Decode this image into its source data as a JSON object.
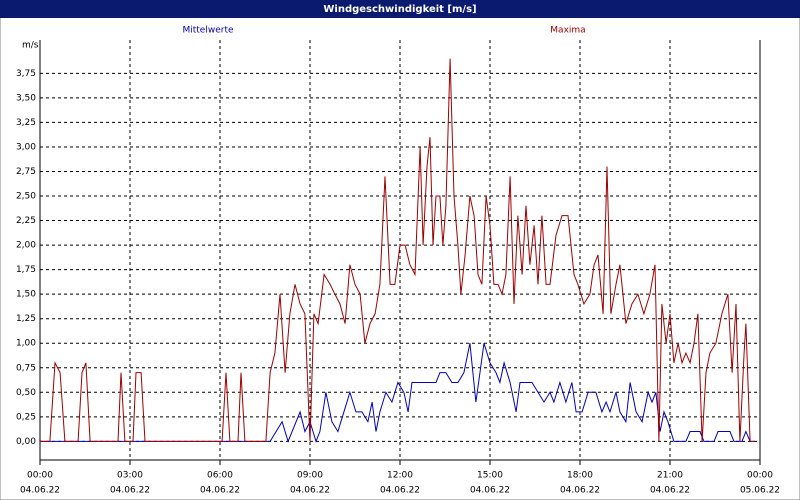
{
  "chart_data": {
    "type": "line",
    "title": "Windgeschwindigkeit [m/s]",
    "y_label": "m/s",
    "xlim": [
      0,
      24
    ],
    "ylim": [
      -0.19,
      4.09
    ],
    "grid": true,
    "xticks": [
      {
        "value": 0,
        "label": "00:00",
        "date": "04.06.22"
      },
      {
        "value": 3,
        "label": "03:00",
        "date": "04.06.22"
      },
      {
        "value": 6,
        "label": "06:00",
        "date": "04.06.22"
      },
      {
        "value": 9,
        "label": "09:00",
        "date": "04.06.22"
      },
      {
        "value": 12,
        "label": "12:00",
        "date": "04.06.22"
      },
      {
        "value": 15,
        "label": "15:00",
        "date": "04.06.22"
      },
      {
        "value": 18,
        "label": "18:00",
        "date": "04.06.22"
      },
      {
        "value": 21,
        "label": "21:00",
        "date": "04.06.22"
      },
      {
        "value": 24,
        "label": "00:00",
        "date": "05.06.22"
      }
    ],
    "yticks": [
      {
        "value": 0,
        "label": "0,00"
      },
      {
        "value": 0.25,
        "label": "0,25"
      },
      {
        "value": 0.5,
        "label": "0,50"
      },
      {
        "value": 0.75,
        "label": "0,75"
      },
      {
        "value": 1,
        "label": "1,00"
      },
      {
        "value": 1.25,
        "label": "1,25"
      },
      {
        "value": 1.5,
        "label": "1,50"
      },
      {
        "value": 1.75,
        "label": "1,75"
      },
      {
        "value": 2,
        "label": "2,00"
      },
      {
        "value": 2.25,
        "label": "2,25"
      },
      {
        "value": 2.5,
        "label": "2,50"
      },
      {
        "value": 2.75,
        "label": "2,75"
      },
      {
        "value": 3,
        "label": "3,00"
      },
      {
        "value": 3.25,
        "label": "3,25"
      },
      {
        "value": 3.5,
        "label": "3,50"
      },
      {
        "value": 3.75,
        "label": "3,75"
      }
    ],
    "series": [
      {
        "name": "Mittelwerte",
        "color": "#0000c0",
        "x": [
          0,
          7.67,
          8.07,
          8.27,
          8.67,
          8.83,
          9.0,
          9.2,
          9.33,
          9.53,
          9.73,
          9.93,
          10.13,
          10.33,
          10.53,
          10.73,
          10.93,
          11.07,
          11.2,
          11.33,
          11.53,
          11.73,
          11.93,
          12.13,
          12.27,
          12.4,
          12.67,
          12.93,
          13.2,
          13.33,
          13.53,
          13.73,
          13.93,
          14.13,
          14.33,
          14.53,
          14.8,
          15.0,
          15.2,
          15.33,
          15.47,
          15.67,
          15.87,
          16.0,
          16.2,
          16.4,
          16.6,
          16.8,
          17.0,
          17.13,
          17.33,
          17.53,
          17.73,
          17.87,
          18.07,
          18.27,
          18.53,
          18.73,
          18.87,
          19.0,
          19.2,
          19.33,
          19.53,
          19.67,
          19.87,
          20.07,
          20.27,
          20.4,
          20.53,
          20.67,
          20.8,
          20.93,
          21.13,
          21.53,
          21.67,
          22.0,
          22.13,
          22.47,
          22.6,
          23.0,
          23.13,
          23.4,
          23.53,
          23.67,
          23.83
        ],
        "values": [
          0,
          0,
          0.2,
          0,
          0.3,
          0.1,
          0.2,
          0,
          0.1,
          0.5,
          0.2,
          0.1,
          0.3,
          0.5,
          0.3,
          0.3,
          0.2,
          0.4,
          0.1,
          0.3,
          0.5,
          0.4,
          0.6,
          0.5,
          0.3,
          0.6,
          0.6,
          0.6,
          0.6,
          0.7,
          0.7,
          0.6,
          0.6,
          0.7,
          1.0,
          0.4,
          1.0,
          0.8,
          0.7,
          0.6,
          0.8,
          0.6,
          0.3,
          0.6,
          0.6,
          0.6,
          0.5,
          0.4,
          0.5,
          0.4,
          0.6,
          0.4,
          0.6,
          0.3,
          0.3,
          0.5,
          0.5,
          0.3,
          0.4,
          0.3,
          0.5,
          0.3,
          0.2,
          0.6,
          0.3,
          0.2,
          0.5,
          0.4,
          0.5,
          0.1,
          0.3,
          0.2,
          0,
          0,
          0.1,
          0.1,
          0,
          0,
          0.1,
          0.1,
          0,
          0,
          0.1,
          0,
          0
        ]
      },
      {
        "name": "Maxima",
        "color": "#a00000",
        "x": [
          0,
          0.33,
          0.5,
          0.67,
          0.83,
          1.27,
          1.4,
          1.53,
          1.67,
          2.6,
          2.7,
          2.83,
          3.1,
          3.2,
          3.37,
          3.5,
          6.07,
          6.2,
          6.33,
          6.6,
          6.7,
          6.83,
          7.53,
          7.67,
          7.83,
          8.0,
          8.17,
          8.33,
          8.5,
          8.67,
          8.83,
          9.0,
          9.13,
          9.27,
          9.47,
          9.67,
          9.83,
          10.0,
          10.17,
          10.33,
          10.5,
          10.67,
          10.83,
          11.0,
          11.17,
          11.33,
          11.5,
          11.67,
          11.83,
          12.0,
          12.17,
          12.33,
          12.5,
          12.67,
          12.77,
          12.9,
          13.0,
          13.1,
          13.2,
          13.33,
          13.43,
          13.53,
          13.67,
          13.8,
          13.93,
          14.03,
          14.17,
          14.33,
          14.47,
          14.6,
          14.73,
          14.87,
          15.0,
          15.13,
          15.27,
          15.4,
          15.53,
          15.67,
          15.8,
          15.93,
          16.07,
          16.2,
          16.33,
          16.47,
          16.6,
          16.73,
          16.87,
          17.0,
          17.2,
          17.4,
          17.6,
          17.8,
          17.93,
          18.13,
          18.33,
          18.47,
          18.6,
          18.77,
          18.9,
          19.03,
          19.2,
          19.33,
          19.53,
          19.73,
          19.93,
          20.13,
          20.33,
          20.5,
          20.63,
          20.73,
          20.87,
          21.0,
          21.13,
          21.27,
          21.4,
          21.53,
          21.67,
          21.8,
          21.93,
          22.07,
          22.2,
          22.33,
          22.53,
          22.73,
          22.93,
          23.07,
          23.2,
          23.33,
          23.47,
          23.53,
          23.67,
          23.83
        ],
        "values": [
          0,
          0,
          0.8,
          0.7,
          0,
          0,
          0.7,
          0.8,
          0,
          0,
          0.7,
          0,
          0,
          0.7,
          0.7,
          0,
          0,
          0.7,
          0,
          0,
          0.7,
          0,
          0,
          0.7,
          0.9,
          1.5,
          0.7,
          1.3,
          1.6,
          1.4,
          1.3,
          0,
          1.3,
          1.2,
          1.7,
          1.6,
          1.5,
          1.4,
          1.2,
          1.8,
          1.6,
          1.5,
          1.0,
          1.2,
          1.3,
          1.6,
          2.7,
          1.6,
          1.6,
          2.0,
          2.0,
          1.8,
          1.7,
          3.0,
          2.0,
          2.8,
          3.1,
          2.0,
          2.5,
          2.5,
          2.0,
          2.4,
          3.9,
          2.5,
          2.0,
          1.5,
          1.9,
          2.5,
          2.3,
          1.7,
          1.6,
          2.5,
          2.2,
          1.6,
          1.6,
          1.5,
          1.7,
          2.7,
          1.4,
          2.3,
          1.7,
          2.4,
          1.8,
          2.2,
          1.6,
          2.3,
          1.6,
          1.6,
          2.1,
          2.3,
          2.3,
          1.7,
          1.6,
          1.4,
          1.5,
          1.8,
          1.9,
          1.3,
          2.8,
          1.3,
          1.6,
          1.8,
          1.2,
          1.4,
          1.5,
          1.3,
          1.5,
          1.8,
          0,
          1.4,
          1.0,
          1.3,
          0.8,
          1.0,
          0.8,
          0.9,
          0.8,
          1.0,
          1.3,
          0,
          0.7,
          0.9,
          1.0,
          1.3,
          1.5,
          0.7,
          1.4,
          0,
          0.9,
          1.2,
          0,
          0
        ]
      }
    ]
  }
}
